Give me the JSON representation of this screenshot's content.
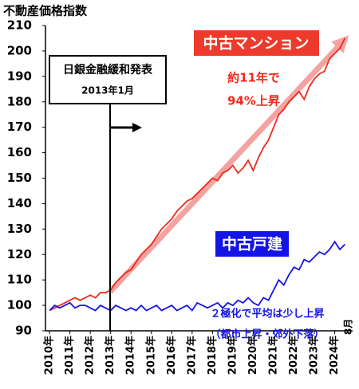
{
  "chart_data": {
    "type": "line",
    "title": "不動産価格指数",
    "x": [
      2010,
      2010.25,
      2010.5,
      2010.75,
      2011,
      2011.25,
      2011.5,
      2011.75,
      2012,
      2012.25,
      2012.5,
      2012.75,
      2013,
      2013.25,
      2013.5,
      2013.75,
      2014,
      2014.25,
      2014.5,
      2014.75,
      2015,
      2015.25,
      2015.5,
      2015.75,
      2016,
      2016.25,
      2016.5,
      2016.75,
      2017,
      2017.25,
      2017.5,
      2017.75,
      2018,
      2018.25,
      2018.5,
      2018.75,
      2019,
      2019.25,
      2019.5,
      2019.75,
      2020,
      2020.25,
      2020.5,
      2020.75,
      2021,
      2021.25,
      2021.5,
      2021.75,
      2022,
      2022.25,
      2022.5,
      2022.75,
      2023,
      2023.25,
      2023.5,
      2023.75,
      2024,
      2024.25,
      2024.5
    ],
    "series": [
      {
        "name": "中古マンション",
        "color": "#ee2a1b",
        "values": [
          98,
          99,
          100,
          101,
          102,
          103,
          102,
          103,
          104,
          103,
          105,
          105,
          106,
          109,
          111,
          113,
          114,
          117,
          120,
          122,
          124,
          127,
          130,
          132,
          134,
          137,
          139,
          141,
          142,
          144,
          146,
          148,
          150,
          149,
          152,
          153,
          155,
          152,
          154,
          157,
          153,
          158,
          162,
          165,
          170,
          175,
          177,
          180,
          182,
          184,
          181,
          186,
          189,
          191,
          192,
          197,
          199,
          201,
          205
        ]
      },
      {
        "name": "中古戸建",
        "color": "#1414e6",
        "values": [
          98,
          100,
          99,
          100,
          101,
          99,
          100,
          100,
          99,
          98,
          100,
          99,
          98,
          100,
          99,
          98,
          99,
          98,
          100,
          98,
          99,
          100,
          98,
          99,
          100,
          98,
          99,
          100,
          98,
          101,
          100,
          99,
          100,
          101,
          99,
          101,
          100,
          102,
          101,
          103,
          101,
          100,
          103,
          102,
          106,
          110,
          108,
          112,
          115,
          114,
          118,
          117,
          119,
          121,
          120,
          122,
          125,
          122,
          124
        ]
      }
    ],
    "xlim": [
      2009.8,
      2024.8
    ],
    "xticks": [
      {
        "value": 2010,
        "label": "2010年"
      },
      {
        "value": 2011,
        "label": "2011年"
      },
      {
        "value": 2012,
        "label": "2012年"
      },
      {
        "value": 2013,
        "label": "2013年"
      },
      {
        "value": 2014,
        "label": "2014年"
      },
      {
        "value": 2015,
        "label": "2015年"
      },
      {
        "value": 2016,
        "label": "2016年"
      },
      {
        "value": 2017,
        "label": "2017年"
      },
      {
        "value": 2018,
        "label": "2018年"
      },
      {
        "value": 2019,
        "label": "2019年"
      },
      {
        "value": 2020,
        "label": "2020年"
      },
      {
        "value": 2021,
        "label": "2021年"
      },
      {
        "value": 2022,
        "label": "2022年"
      },
      {
        "value": 2023,
        "label": "2023年"
      },
      {
        "value": 2024,
        "label": "2024年"
      }
    ],
    "ylim": [
      90,
      210
    ],
    "yticks": [
      90,
      100,
      110,
      120,
      130,
      140,
      150,
      160,
      170,
      180,
      190,
      200,
      210
    ],
    "grid": false,
    "annotations": [
      "日銀金融緩和発表",
      "2013年1月",
      "約11年で",
      "94%上昇",
      "２極化で平均は少し上昇",
      "（都市上昇・郊外下落）",
      "8月"
    ]
  }
}
